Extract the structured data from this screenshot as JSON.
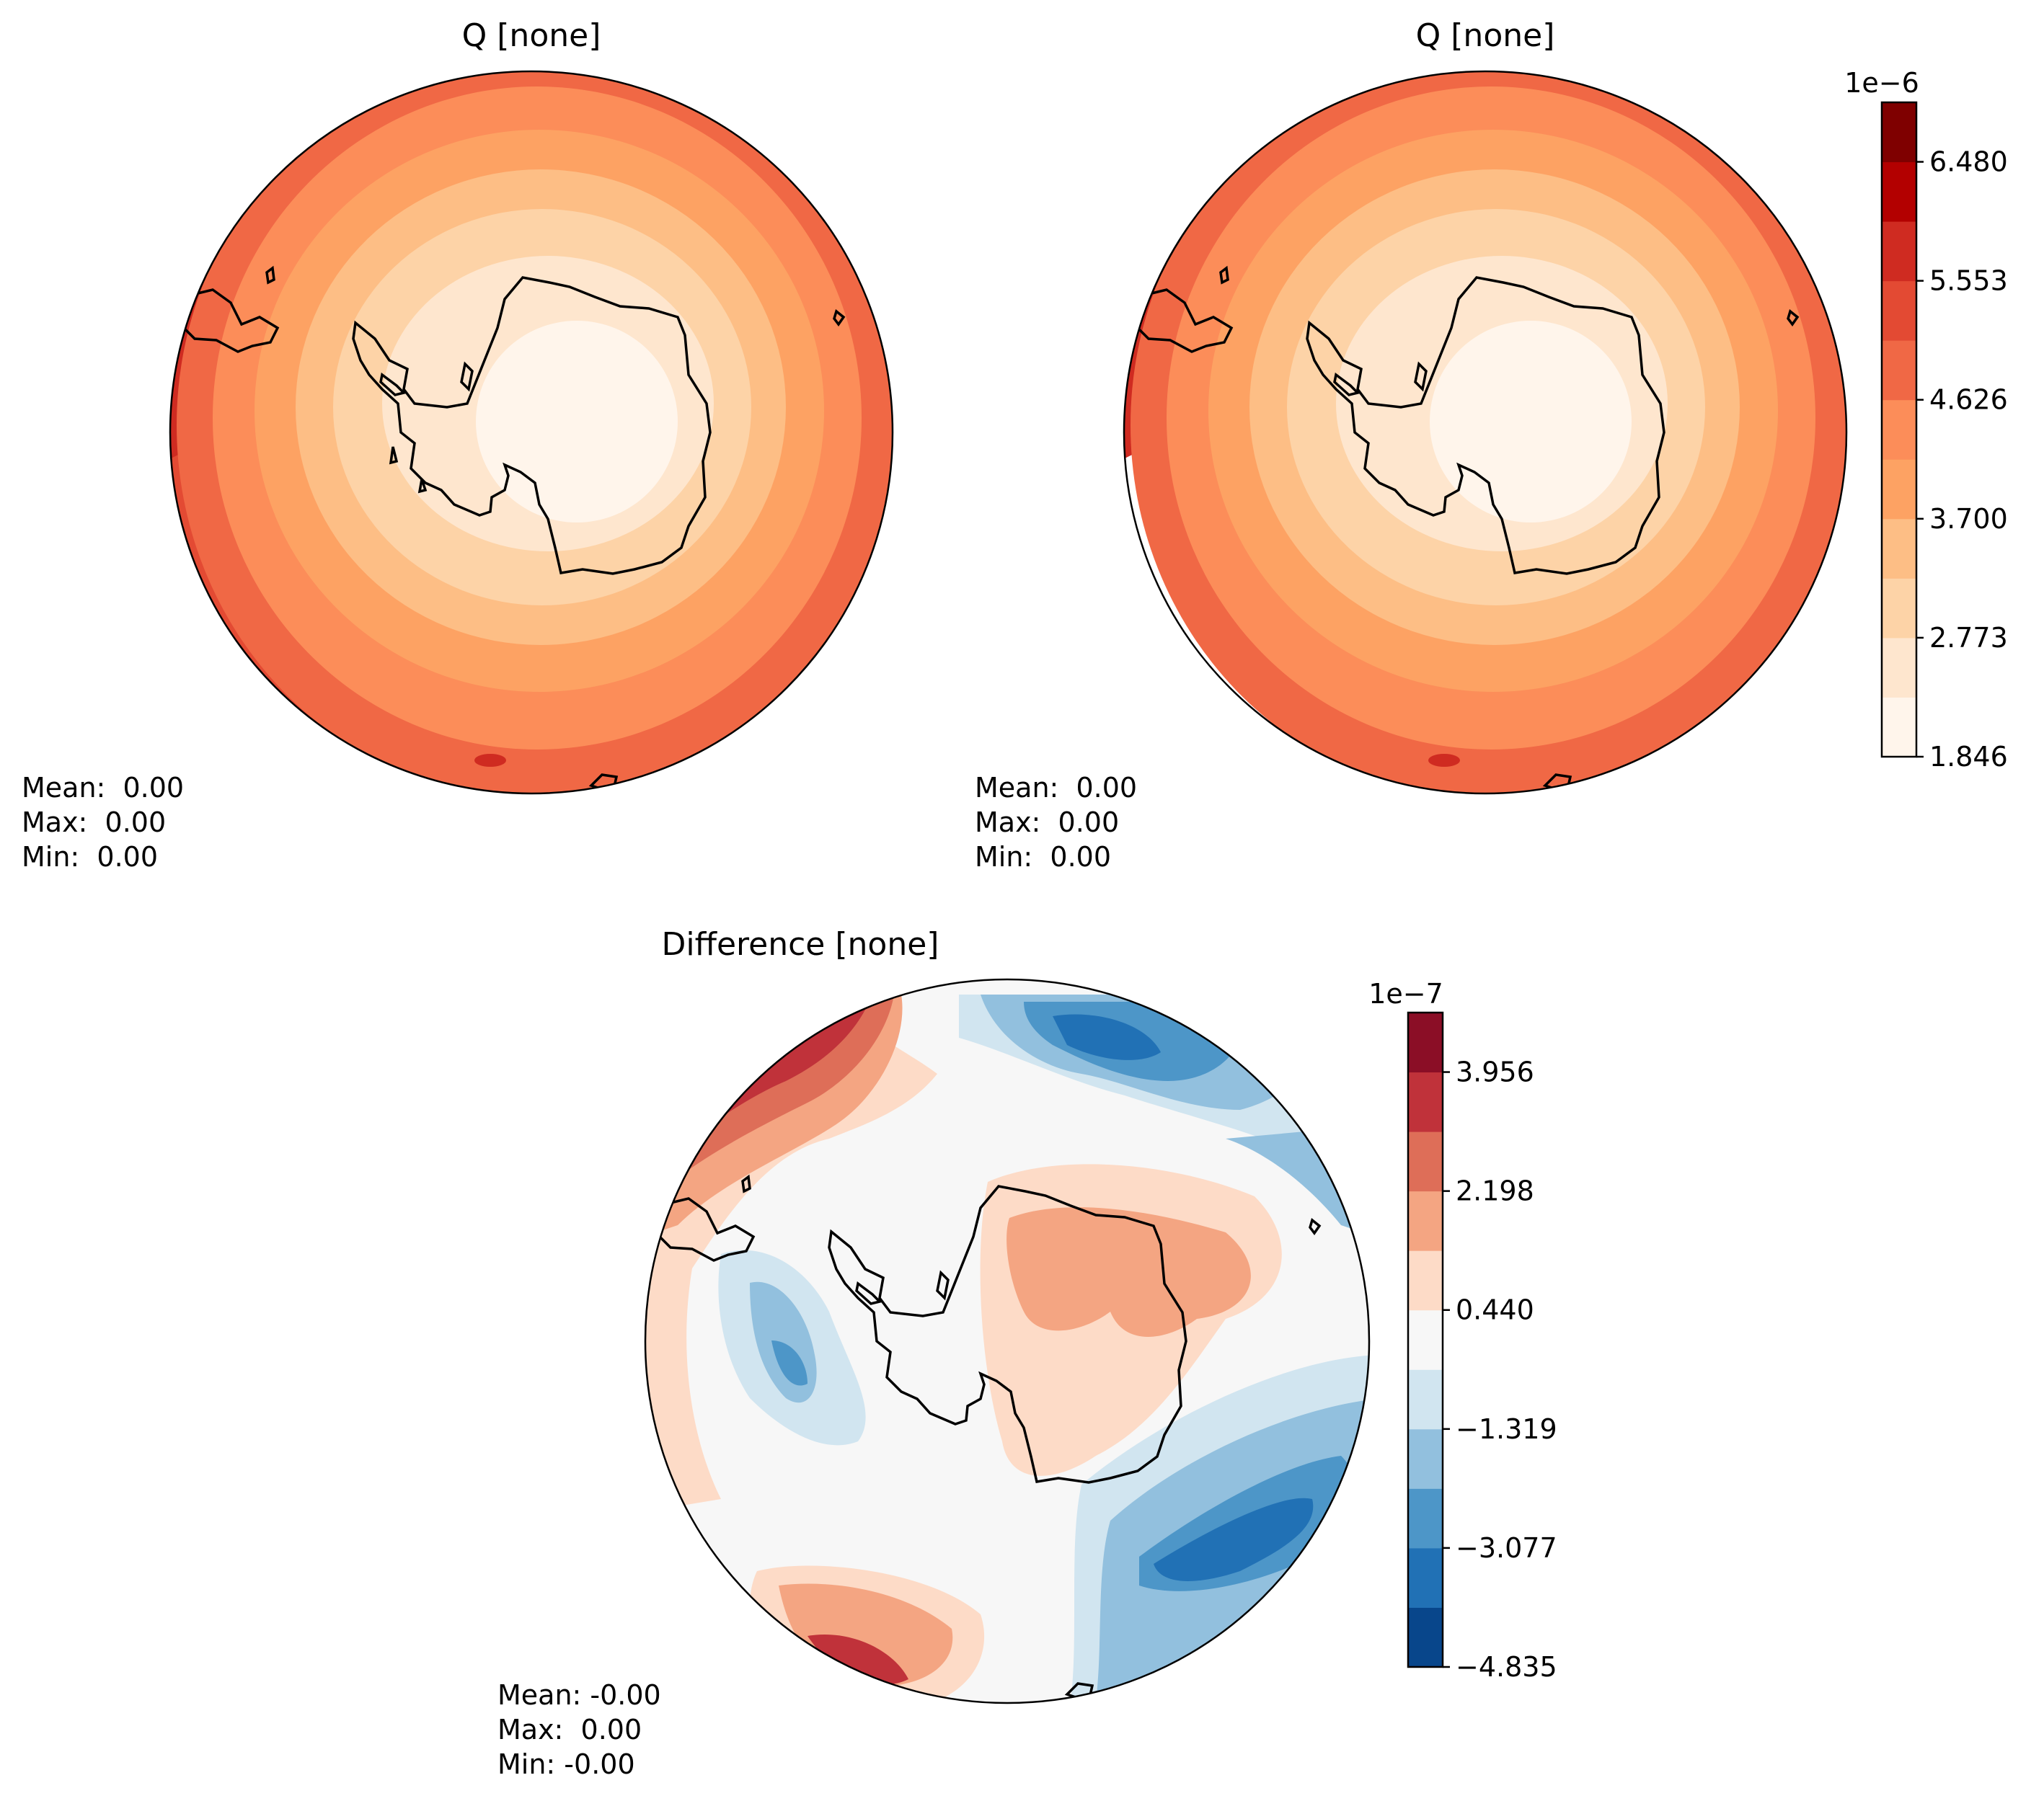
{
  "panels": [
    {
      "title": "Q [none]",
      "stats": [
        "Mean:  0.00",
        "Max:  0.00",
        "Min:  0.00"
      ],
      "field": "test"
    },
    {
      "title": "Q [none]",
      "stats": [
        "Mean:  0.00",
        "Max:  0.00",
        "Min:  0.00"
      ],
      "field": "reference"
    },
    {
      "title": "Difference [none]",
      "stats": [
        "Mean: -0.00",
        "Max:  0.00",
        "Min: -0.00"
      ],
      "field": "difference"
    }
  ],
  "colorbars": [
    {
      "exponent": "1e−6",
      "ticks": [
        "6.480",
        "5.553",
        "4.626",
        "3.700",
        "2.773",
        "1.846"
      ],
      "levels": 11,
      "colors": [
        "#fff5eb",
        "#fee6ce",
        "#fdd3a7",
        "#fdbe85",
        "#fda263",
        "#fc8d59",
        "#f06845",
        "#e34a33",
        "#cf2b21",
        "#b30000",
        "#7f0000"
      ]
    },
    {
      "exponent": "1e−7",
      "ticks": [
        "3.956",
        "2.198",
        "0.440",
        "−1.319",
        "−3.077",
        "−4.835"
      ],
      "levels": 11,
      "colors": [
        "#08468b",
        "#2171b5",
        "#4d96c8",
        "#92c0de",
        "#d1e5f0",
        "#f7f7f7",
        "#fddbc7",
        "#f4a582",
        "#de6e58",
        "#c0323a",
        "#8b0e26"
      ]
    }
  ]
}
